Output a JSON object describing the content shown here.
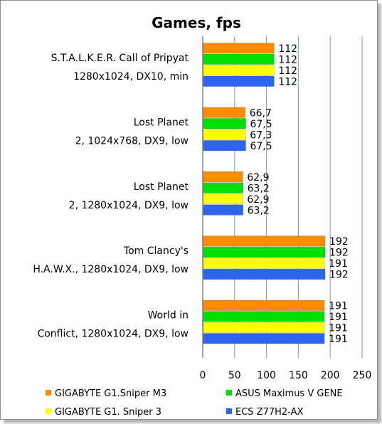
{
  "chart_data": {
    "type": "bar",
    "orientation": "horizontal",
    "title": "Games, fps",
    "xlim": [
      0,
      250
    ],
    "x_ticks": [
      "0",
      "50",
      "100",
      "150",
      "200",
      "250"
    ],
    "grid": "vertical",
    "legend_position": "bottom",
    "categories": [
      {
        "lines": [
          "S.T.A.L.K.E.R. Call of Pripyat",
          "1280x1024, DX10, min"
        ]
      },
      {
        "lines": [
          "Lost Planet",
          "2, 1024x768, DX9, low"
        ]
      },
      {
        "lines": [
          "Lost Planet",
          "2, 1280x1024, DX9, low"
        ]
      },
      {
        "lines": [
          "Tom Clancy's",
          "H.A.W.X., 1280x1024, DX9, low"
        ]
      },
      {
        "lines": [
          "World in",
          "Conflict, 1280x1024, DX9, low"
        ]
      }
    ],
    "series": [
      {
        "name": "GIGABYTE G1.Sniper M3",
        "color": "#FF8C00",
        "values": [
          112,
          66.7,
          62.9,
          192,
          191
        ],
        "labels": [
          "112",
          "66,7",
          "62,9",
          "192",
          "191"
        ]
      },
      {
        "name": "ASUS Maximus V GENE",
        "color": "#00E000",
        "values": [
          112,
          67.5,
          63.2,
          192,
          191
        ],
        "labels": [
          "112",
          "67,5",
          "63,2",
          "192",
          "191"
        ]
      },
      {
        "name": "GIGABYTE G1. Sniper 3",
        "color": "#FFFF00",
        "values": [
          112,
          67.3,
          62.9,
          191,
          191
        ],
        "labels": [
          "112",
          "67,3",
          "62,9",
          "191",
          "191"
        ]
      },
      {
        "name": "ECS Z77H2-AX",
        "color": "#2E64F0",
        "values": [
          112,
          67.5,
          63.2,
          192,
          191
        ],
        "labels": [
          "112",
          "67,5",
          "63,2",
          "192",
          "191"
        ]
      }
    ]
  }
}
